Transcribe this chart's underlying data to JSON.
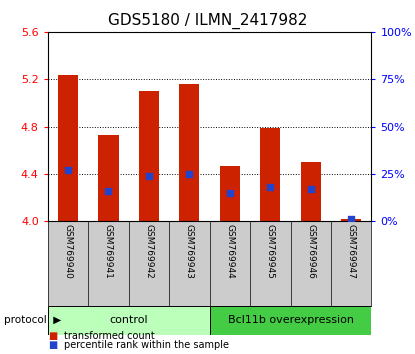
{
  "title": "GDS5180 / ILMN_2417982",
  "samples": [
    "GSM769940",
    "GSM769941",
    "GSM769942",
    "GSM769943",
    "GSM769944",
    "GSM769945",
    "GSM769946",
    "GSM769947"
  ],
  "bar_heights": [
    5.235,
    4.73,
    5.1,
    5.16,
    4.47,
    4.79,
    4.5,
    4.02
  ],
  "bar_base": 4.0,
  "percentile_values": [
    27,
    16,
    24,
    25,
    15,
    18,
    17,
    1
  ],
  "ylim_left": [
    4.0,
    5.6
  ],
  "ylim_right": [
    0,
    100
  ],
  "yticks_left": [
    4.0,
    4.4,
    4.8,
    5.2,
    5.6
  ],
  "yticks_right": [
    0,
    25,
    50,
    75,
    100
  ],
  "ytick_labels_right": [
    "0%",
    "25%",
    "50%",
    "75%",
    "100%"
  ],
  "bar_color": "#cc2200",
  "percentile_color": "#2244cc",
  "groups": [
    {
      "label": "control",
      "n_samples": 4,
      "color": "#bbffbb"
    },
    {
      "label": "Bcl11b overexpression",
      "n_samples": 4,
      "color": "#44cc44"
    }
  ],
  "protocol_label": "protocol",
  "legend_items": [
    {
      "label": "transformed count",
      "color": "#cc2200"
    },
    {
      "label": "percentile rank within the sample",
      "color": "#2244cc"
    }
  ],
  "plot_bg_color": "#ffffff",
  "sample_bg_color": "#cccccc",
  "title_fontsize": 11,
  "tick_fontsize": 8,
  "bar_width": 0.5
}
